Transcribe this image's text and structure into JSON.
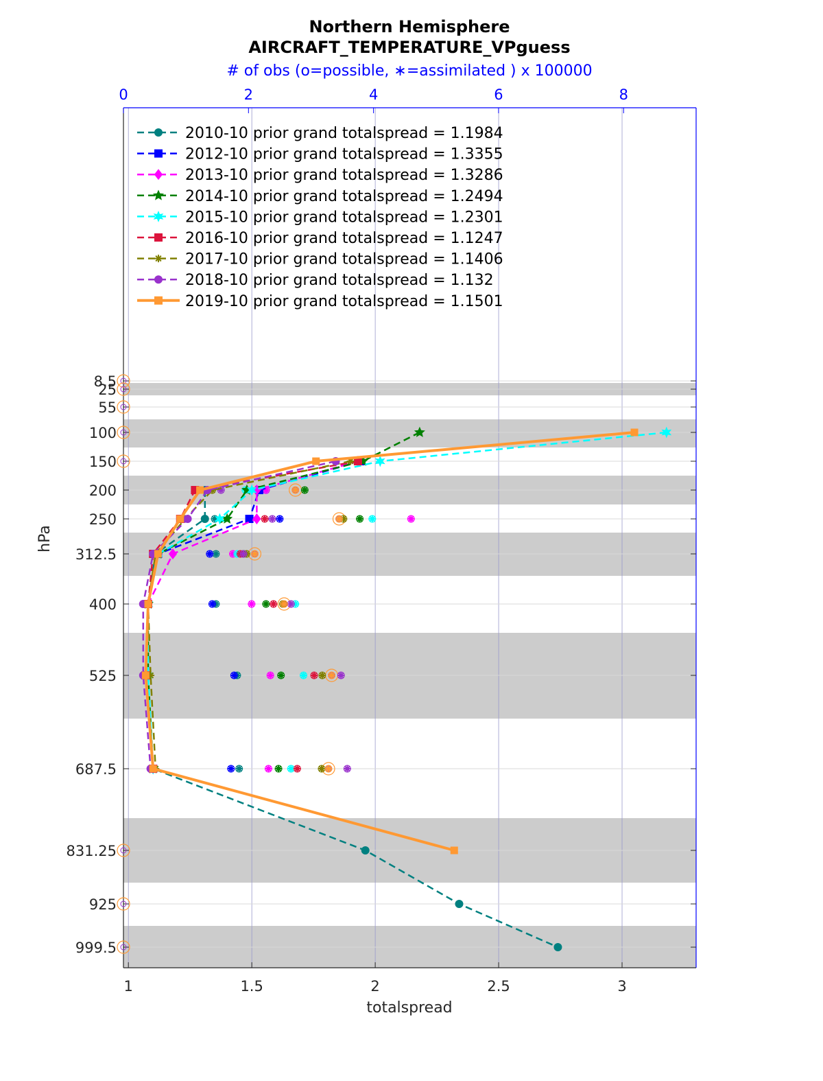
{
  "chart_data": {
    "type": "line",
    "title_line1": "Northern Hemisphere",
    "title_line2": "AIRCRAFT_TEMPERATURE_VPguess",
    "top_axis_label": "# of obs (o=possible, ∗=assimilated ) x 100000",
    "xlabel": "totalspread",
    "ylabel": "hPa",
    "xlim": [
      0.98,
      3.3
    ],
    "x_ticks": [
      "1",
      "1.5",
      "2",
      "2.5",
      "3"
    ],
    "top_xlim": [
      0,
      9.16
    ],
    "top_ticks": [
      "0",
      "2",
      "4",
      "6",
      "8"
    ],
    "y_scale": "pressure (reversed)",
    "levels": [
      "8.5",
      "25",
      "55",
      "100",
      "150",
      "200",
      "250",
      "312.5",
      "400",
      "525",
      "687.5",
      "831.25",
      "925",
      "999.5"
    ],
    "grid": true,
    "legend_placement": "top-left",
    "series": [
      {
        "name": "2010-10 prior grand totalspread = 1.1984",
        "color": "#008080",
        "marker": "circle",
        "dashed": true,
        "points": [
          [
            1.31,
            200
          ],
          [
            1.31,
            250
          ],
          [
            1.11,
            312.5
          ],
          [
            1.08,
            400
          ],
          [
            1.07,
            525
          ],
          [
            1.1,
            687.5
          ],
          [
            1.96,
            831.25
          ],
          [
            2.34,
            925
          ],
          [
            2.74,
            999.5
          ]
        ]
      },
      {
        "name": "2012-10 prior grand totalspread = 1.3355",
        "color": "#0000ff",
        "marker": "square",
        "dashed": true,
        "points": [
          [
            1.94,
            150
          ],
          [
            1.53,
            200
          ],
          [
            1.49,
            250
          ],
          [
            1.12,
            312.5
          ],
          [
            1.08,
            400
          ],
          [
            1.07,
            525
          ],
          [
            1.1,
            687.5
          ]
        ]
      },
      {
        "name": "2013-10 prior grand totalspread = 1.3286",
        "color": "#ff00ff",
        "marker": "diamond",
        "dashed": true,
        "points": [
          [
            1.93,
            150
          ],
          [
            1.52,
            200
          ],
          [
            1.52,
            250
          ],
          [
            1.18,
            312.5
          ],
          [
            1.08,
            400
          ],
          [
            1.07,
            525
          ],
          [
            1.1,
            687.5
          ]
        ]
      },
      {
        "name": "2014-10 prior grand totalspread = 1.2494",
        "color": "#008000",
        "marker": "star",
        "dashed": true,
        "points": [
          [
            2.18,
            100
          ],
          [
            1.95,
            150
          ],
          [
            1.48,
            200
          ],
          [
            1.4,
            250
          ],
          [
            1.12,
            312.5
          ],
          [
            1.08,
            400
          ],
          [
            1.08,
            525
          ],
          [
            1.1,
            687.5
          ]
        ]
      },
      {
        "name": "2015-10 prior grand totalspread = 1.2301",
        "color": "#00ffff",
        "marker": "hexagram",
        "dashed": true,
        "points": [
          [
            3.18,
            100
          ],
          [
            2.02,
            150
          ],
          [
            1.5,
            200
          ],
          [
            1.37,
            250
          ],
          [
            1.12,
            312.5
          ],
          [
            1.08,
            400
          ],
          [
            1.08,
            525
          ],
          [
            1.1,
            687.5
          ]
        ]
      },
      {
        "name": "2016-10 prior grand totalspread = 1.1247",
        "color": "#dc143c",
        "marker": "square",
        "dashed": true,
        "points": [
          [
            1.93,
            150
          ],
          [
            1.27,
            200
          ],
          [
            1.21,
            250
          ],
          [
            1.1,
            312.5
          ],
          [
            1.08,
            400
          ],
          [
            1.07,
            525
          ],
          [
            1.1,
            687.5
          ]
        ]
      },
      {
        "name": "2017-10 prior grand totalspread = 1.1406",
        "color": "#808000",
        "marker": "asterisk",
        "dashed": true,
        "points": [
          [
            1.9,
            150
          ],
          [
            1.34,
            200
          ],
          [
            1.23,
            250
          ],
          [
            1.11,
            312.5
          ],
          [
            1.08,
            400
          ],
          [
            1.09,
            525
          ],
          [
            1.11,
            687.5
          ]
        ]
      },
      {
        "name": "2018-10 prior grand totalspread = 1.132",
        "color": "#9932cc",
        "marker": "circle",
        "dashed": true,
        "points": [
          [
            1.84,
            150
          ],
          [
            1.32,
            200
          ],
          [
            1.24,
            250
          ],
          [
            1.1,
            312.5
          ],
          [
            1.06,
            400
          ],
          [
            1.06,
            525
          ],
          [
            1.09,
            687.5
          ]
        ]
      },
      {
        "name": "2019-10 prior grand totalspread = 1.1501",
        "color": "#ff9933",
        "marker": "square",
        "dashed": false,
        "points": [
          [
            3.05,
            100
          ],
          [
            1.76,
            150
          ],
          [
            1.29,
            200
          ],
          [
            1.21,
            250
          ],
          [
            1.12,
            312.5
          ],
          [
            1.08,
            400
          ],
          [
            1.07,
            525
          ],
          [
            1.1,
            687.5
          ],
          [
            2.32,
            831.25
          ]
        ]
      }
    ],
    "obs_counts": {
      "note": "top axis (# of obs x 100000)",
      "possible_circles_2019": [
        [
          0,
          8.5
        ],
        [
          0,
          25
        ],
        [
          0,
          55
        ],
        [
          0,
          100
        ],
        [
          0,
          150
        ],
        [
          2.75,
          200
        ],
        [
          3.45,
          250
        ],
        [
          2.1,
          312.5
        ],
        [
          2.57,
          400
        ],
        [
          3.33,
          525
        ],
        [
          3.28,
          687.5
        ],
        [
          0,
          831.25
        ],
        [
          0,
          925
        ],
        [
          0,
          999.5
        ]
      ],
      "assimilated": [
        {
          "level": 200,
          "counts": [
            1.26,
            2.28,
            2.28,
            2.9,
            1.95,
            1.26,
            1.42,
            1.56,
            2.75
          ]
        },
        {
          "level": 250,
          "counts": [
            1.46,
            2.5,
            4.6,
            3.78,
            3.98,
            2.26,
            3.52,
            2.38,
            3.45
          ]
        },
        {
          "level": 312.5,
          "counts": [
            1.48,
            1.38,
            1.75,
            1.92,
            1.82,
            1.87,
            1.97,
            1.92,
            2.1
          ]
        },
        {
          "level": 400,
          "counts": [
            1.48,
            1.42,
            2.05,
            2.28,
            2.75,
            2.4,
            2.55,
            2.68,
            2.57
          ]
        },
        {
          "level": 525,
          "counts": [
            1.82,
            1.77,
            2.35,
            2.52,
            2.88,
            3.05,
            3.18,
            3.48,
            3.33
          ]
        },
        {
          "level": 687.5,
          "counts": [
            1.85,
            1.72,
            2.32,
            2.48,
            2.68,
            2.78,
            3.17,
            3.58,
            3.28
          ]
        }
      ]
    }
  }
}
